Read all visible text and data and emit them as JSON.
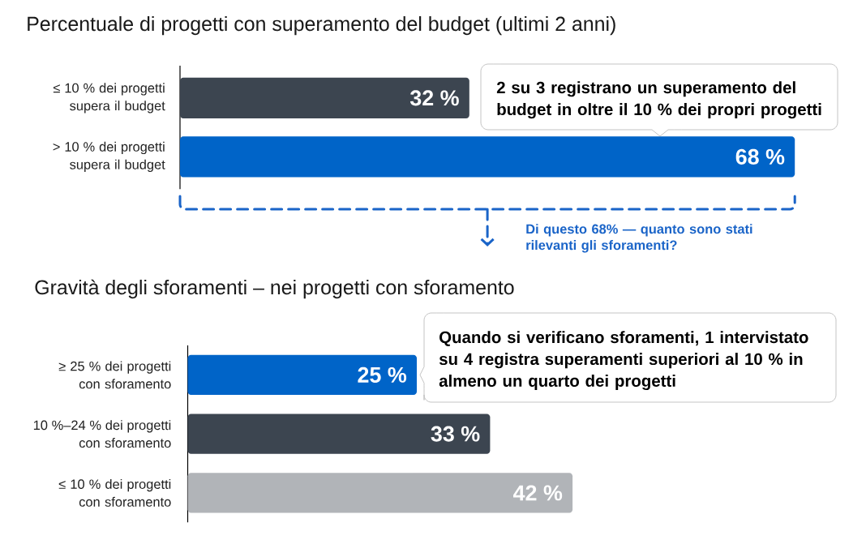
{
  "chart_data": [
    {
      "type": "bar",
      "orientation": "horizontal",
      "title": "Percentuale di progetti con superamento del budget (ultimi 2 anni)",
      "categories": [
        "≤ 10 % dei progetti supera il budget",
        "> 10 % dei progetti supera il budget"
      ],
      "values": [
        32,
        68
      ],
      "colors": [
        "#3c4550",
        "#0064c8"
      ],
      "value_labels": [
        "32 %",
        "68 %"
      ],
      "tick_labels": "y",
      "annotations": [
        "2 su 3 registrano un superamento del budget in oltre il 10 % dei propri progetti",
        "Di questo 68% — quanto sono stati rilevanti gli sforamenti?"
      ]
    },
    {
      "type": "bar",
      "orientation": "horizontal",
      "title": "Gravità degli sforamenti – nei progetti con sforamento",
      "categories": [
        "≥ 25 % dei progetti con sforamento",
        "10 %–24 % dei progetti con sforamento",
        "≤ 10 % dei progetti con sforamento"
      ],
      "values": [
        25,
        33,
        42
      ],
      "colors": [
        "#0064c8",
        "#3c4550",
        "#b1b4b8"
      ],
      "value_labels": [
        "25 %",
        "33 %",
        "42 %"
      ],
      "tick_labels": "y",
      "annotations": [
        "Quando si verificano sforamenti, 1 intervistato su 4 registra superamenti superiori al 10 % in almeno un quarto dei progetti"
      ]
    }
  ]
}
